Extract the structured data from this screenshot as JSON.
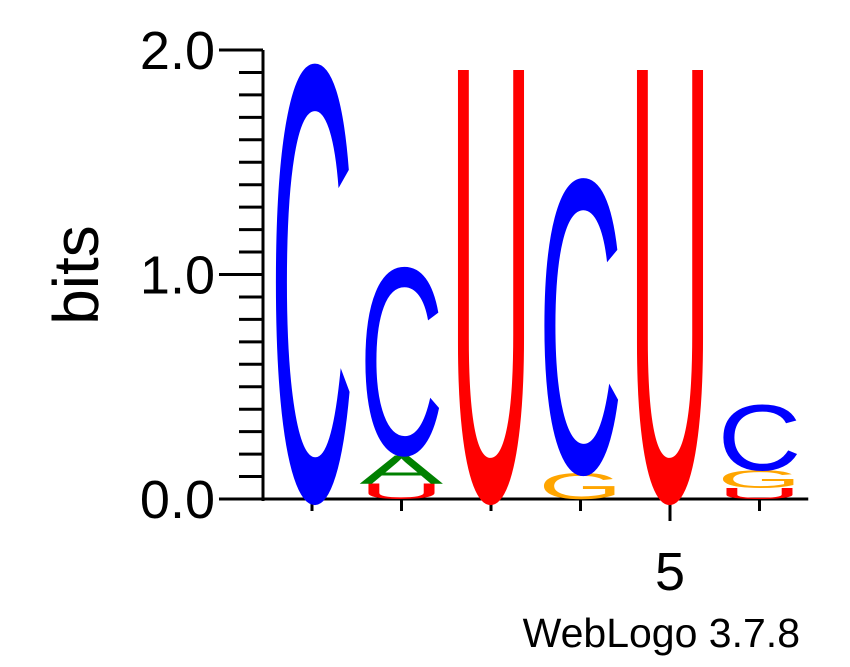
{
  "chart_data": {
    "type": "sequence-logo",
    "ylabel": "bits",
    "ylim": [
      0,
      2
    ],
    "yticks": [
      "0.0",
      "1.0",
      "2.0"
    ],
    "x_positions": [
      1,
      2,
      3,
      4,
      5,
      6
    ],
    "x_tick_labels": [
      "",
      "",
      "",
      "",
      "5",
      ""
    ],
    "credit": "WebLogo 3.7.8",
    "colors": {
      "A": "#008000",
      "C": "#0000ff",
      "G": "#ffa500",
      "U": "#ff0000"
    },
    "stacks": [
      {
        "position": 1,
        "letters": [
          {
            "letter": "C",
            "bits": 2.0
          }
        ]
      },
      {
        "position": 2,
        "letters": [
          {
            "letter": "U",
            "bits": 0.07
          },
          {
            "letter": "A",
            "bits": 0.13
          },
          {
            "letter": "C",
            "bits": 0.86
          }
        ]
      },
      {
        "position": 3,
        "letters": [
          {
            "letter": "U",
            "bits": 2.0
          }
        ]
      },
      {
        "position": 4,
        "letters": [
          {
            "letter": "G",
            "bits": 0.12
          },
          {
            "letter": "C",
            "bits": 1.35
          }
        ]
      },
      {
        "position": 5,
        "letters": [
          {
            "letter": "U",
            "bits": 2.0
          }
        ]
      },
      {
        "position": 6,
        "letters": [
          {
            "letter": "U",
            "bits": 0.05
          },
          {
            "letter": "G",
            "bits": 0.08
          },
          {
            "letter": "C",
            "bits": 0.3
          }
        ]
      }
    ]
  }
}
